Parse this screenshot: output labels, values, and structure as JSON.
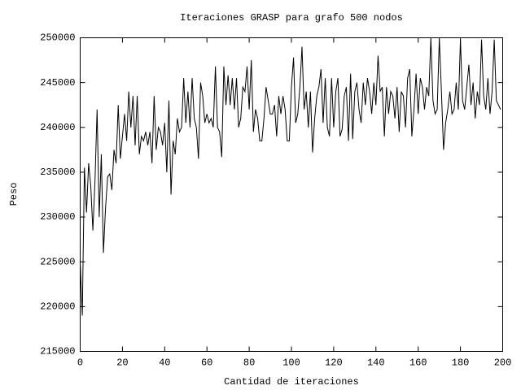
{
  "chart_data": {
    "type": "line",
    "title": "Iteraciones GRASP para grafo 500 nodos",
    "xlabel": "Cantidad de iteraciones",
    "ylabel": "Peso",
    "xlim": [
      0,
      200
    ],
    "xticks": [
      0,
      20,
      40,
      60,
      80,
      100,
      120,
      140,
      160,
      180,
      200
    ],
    "ylim": [
      215000,
      250000
    ],
    "yticks": [
      215000,
      220000,
      225000,
      230000,
      235000,
      240000,
      245000,
      250000
    ],
    "grid": false,
    "x": [
      0,
      1,
      2,
      3,
      4,
      5,
      6,
      7,
      8,
      9,
      10,
      11,
      12,
      13,
      14,
      15,
      16,
      17,
      18,
      19,
      20,
      21,
      22,
      23,
      24,
      25,
      26,
      27,
      28,
      29,
      30,
      31,
      32,
      33,
      34,
      35,
      36,
      37,
      38,
      39,
      40,
      41,
      42,
      43,
      44,
      45,
      46,
      47,
      48,
      49,
      50,
      51,
      52,
      53,
      54,
      55,
      56,
      57,
      58,
      59,
      60,
      61,
      62,
      63,
      64,
      65,
      66,
      67,
      68,
      69,
      70,
      71,
      72,
      73,
      74,
      75,
      76,
      77,
      78,
      79,
      80,
      81,
      82,
      83,
      84,
      85,
      86,
      87,
      88,
      89,
      90,
      91,
      92,
      93,
      94,
      95,
      96,
      97,
      98,
      99,
      100,
      101,
      102,
      103,
      104,
      105,
      106,
      107,
      108,
      109,
      110,
      111,
      112,
      113,
      114,
      115,
      116,
      117,
      118,
      119,
      120,
      121,
      122,
      123,
      124,
      125,
      126,
      127,
      128,
      129,
      130,
      131,
      132,
      133,
      134,
      135,
      136,
      137,
      138,
      139,
      140,
      141,
      142,
      143,
      144,
      145,
      146,
      147,
      148,
      149,
      150,
      151,
      152,
      153,
      154,
      155,
      156,
      157,
      158,
      159,
      160,
      161,
      162,
      163,
      164,
      165,
      166,
      167,
      168,
      169,
      170,
      171,
      172,
      173,
      174,
      175,
      176,
      177,
      178,
      179,
      180,
      181,
      182,
      183,
      184,
      185,
      186,
      187,
      188,
      189,
      190,
      191,
      192,
      193,
      194,
      195,
      196,
      197,
      198,
      199
    ],
    "series": [
      {
        "name": "Peso",
        "color": "#000000",
        "values": [
          225000,
          219000,
          235500,
          230500,
          236000,
          233500,
          228500,
          234000,
          242000,
          230000,
          237000,
          226000,
          231000,
          234500,
          234800,
          233000,
          237500,
          236000,
          242500,
          236500,
          239000,
          241500,
          238500,
          244000,
          240000,
          243500,
          238000,
          243500,
          237000,
          239000,
          238500,
          239500,
          238000,
          239500,
          236000,
          243500,
          237500,
          240000,
          239500,
          238000,
          240500,
          235000,
          243000,
          232500,
          238500,
          237000,
          241000,
          239500,
          240000,
          245500,
          240500,
          244000,
          240000,
          245500,
          241000,
          240000,
          236500,
          245000,
          243500,
          240500,
          241500,
          240500,
          241000,
          240000,
          246800,
          240000,
          239500,
          236700,
          246800,
          242500,
          245800,
          242500,
          245500,
          242000,
          245500,
          240000,
          241000,
          244500,
          244000,
          246800,
          242000,
          247500,
          239500,
          242000,
          241000,
          238500,
          238500,
          241000,
          244500,
          243000,
          241500,
          241500,
          242500,
          239000,
          243500,
          241500,
          243500,
          242000,
          238500,
          238500,
          244500,
          247800,
          240500,
          241500,
          244500,
          249000,
          242000,
          244000,
          240000,
          244000,
          237200,
          241000,
          243500,
          244500,
          246500,
          240500,
          245500,
          240000,
          239000,
          245500,
          240000,
          244000,
          245500,
          239000,
          239800,
          243500,
          244500,
          238500,
          246000,
          238700,
          244000,
          245000,
          242000,
          240500,
          245000,
          242500,
          245500,
          244000,
          241500,
          245000,
          242500,
          248000,
          244000,
          244500,
          239000,
          244500,
          241500,
          244000,
          243500,
          241000,
          244500,
          239500,
          244000,
          243500,
          240000,
          245500,
          246500,
          239000,
          242000,
          246000,
          241500,
          245500,
          244500,
          242000,
          244500,
          243500,
          250000,
          243000,
          241500,
          242000,
          250000,
          244000,
          237500,
          240500,
          242000,
          244000,
          241500,
          242000,
          245000,
          242000,
          249800,
          243000,
          242000,
          244500,
          247000,
          242500,
          245000,
          241000,
          244000,
          242500,
          249800,
          243500,
          242000,
          245500,
          241500,
          244000,
          249800,
          243000,
          242500,
          242000
        ]
      }
    ]
  }
}
